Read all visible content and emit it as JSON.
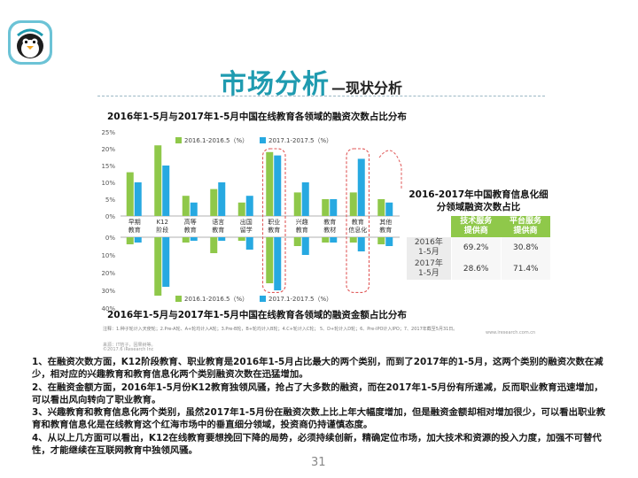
{
  "slide": {
    "title_main": "市场分析",
    "title_dash": "—",
    "title_sub": "现状分析",
    "page_number": "31"
  },
  "colors": {
    "accent_teal": "#1f9bb0",
    "series_2016": "#8fc84a",
    "series_2017": "#27a9e1",
    "highlight_dash": "#e05a5a"
  },
  "logo": {
    "icon": "penguin-mascot-icon"
  },
  "chart_data": [
    {
      "type": "bar",
      "title": "2016年1-5月与2017年1-5月中国在线教育各领域的融资次数占比分布",
      "categories": [
        "早期\n教育",
        "K12\n阶段",
        "高等\n教育",
        "语言\n教育",
        "出国\n留学",
        "职业\n教育",
        "兴趣\n教育",
        "教育\n教材",
        "教育\n信息化",
        "其他\n教育"
      ],
      "series": [
        {
          "name": "2016.1-2016.5（%）",
          "values": [
            13,
            21,
            6,
            8,
            4,
            19,
            7,
            5,
            7,
            5
          ]
        },
        {
          "name": "2017.1-2017.5（%）",
          "values": [
            10,
            15,
            4,
            10,
            6,
            18,
            10,
            5,
            17,
            4
          ]
        }
      ],
      "y_ticks": [
        "25%",
        "20%",
        "15%",
        "10%",
        "5%",
        "0%"
      ],
      "ylim": [
        0,
        25
      ],
      "highlight_categories": [
        "职业\n教育",
        "教育\n信息化"
      ],
      "legend_position": "top-left"
    },
    {
      "type": "bar",
      "title": "2016年1-5月与2017年1-5月中国在线教育各领域的融资金额占比分布",
      "categories": [
        "早期\n教育",
        "K12\n阶段",
        "高等\n教育",
        "语言\n教育",
        "出国\n留学",
        "职业\n教育",
        "兴趣\n教育",
        "教育\n教材",
        "教育\n信息化",
        "其他\n教育"
      ],
      "series": [
        {
          "name": "2016.1-2016.5（%）",
          "values": [
            4,
            33,
            3,
            9,
            2,
            26,
            5,
            3,
            3,
            4
          ]
        },
        {
          "name": "2017.1-2017.5（%）",
          "values": [
            3,
            28,
            2,
            2,
            7,
            30,
            10,
            3,
            8,
            5
          ]
        }
      ],
      "y_ticks": [
        "0%",
        "10%",
        "20%",
        "30%",
        "40%"
      ],
      "ylim": [
        0,
        40
      ],
      "inverted": true,
      "legend_position": "bottom-left"
    },
    {
      "type": "table",
      "title": "2016-2017年中国教育信息化细分领域融资次数占比",
      "columns": [
        "技术服务\n提供商",
        "平台服务\n提供商"
      ],
      "rows": [
        {
          "label": "2016年\n1-5月",
          "values": [
            "69.2%",
            "30.8%"
          ]
        },
        {
          "label": "2017年\n1-5月",
          "values": [
            "28.6%",
            "71.4%"
          ]
        }
      ]
    }
  ],
  "chart_notes": {
    "note": "注释：1.种子轮计入天使轮；2.Pre-A轮、A+轮均计入A轮；3.Pre-B轮，B+轮均计入B轮；4.C+轮计入C轮； 5、D+轮计入D轮；6、Pre-IPO计入IPO；7、2017年截至5月31日。",
    "source": "来源：IT桔子，因果树等。",
    "copyright": "©2017.6 iResearch Inc",
    "website": "www.iresearch.com.cn"
  },
  "paragraphs": [
    "1、在融资次数方面，K12阶段教育、职业教育是2016年1-5月占比最大的两个类别，而到了2017年的1-5月，这两个类别的融资次数在减少，相对应的兴趣教育和教育信息化两个类别融资次数在迅猛增加。",
    "2、在融资金额方面，2016年1-5月份K12教育独领风骚，抢占了大多数的融资，而在2017年1-5月份有所递减，反而职业教育迅速增加，可以看出风向转向了职业教育。",
    "3、兴趣教育和教育信息化两个类别，虽然2017年1-5月份在融资次数上比上年大幅度增加，但是融资金额却相对增加很少，可以看出职业教育和教育信息化是在线教育这个红海市场中的垂直细分领域，投资商仍持谨慎态度。",
    "4、从以上几方面可以看出，K12在线教育要想挽回下降的局势，必须持续创新，精确定位市场，加大技术和资源的投入力度，加强不可替代性，才能继续在互联网教育中独领风骚。"
  ]
}
